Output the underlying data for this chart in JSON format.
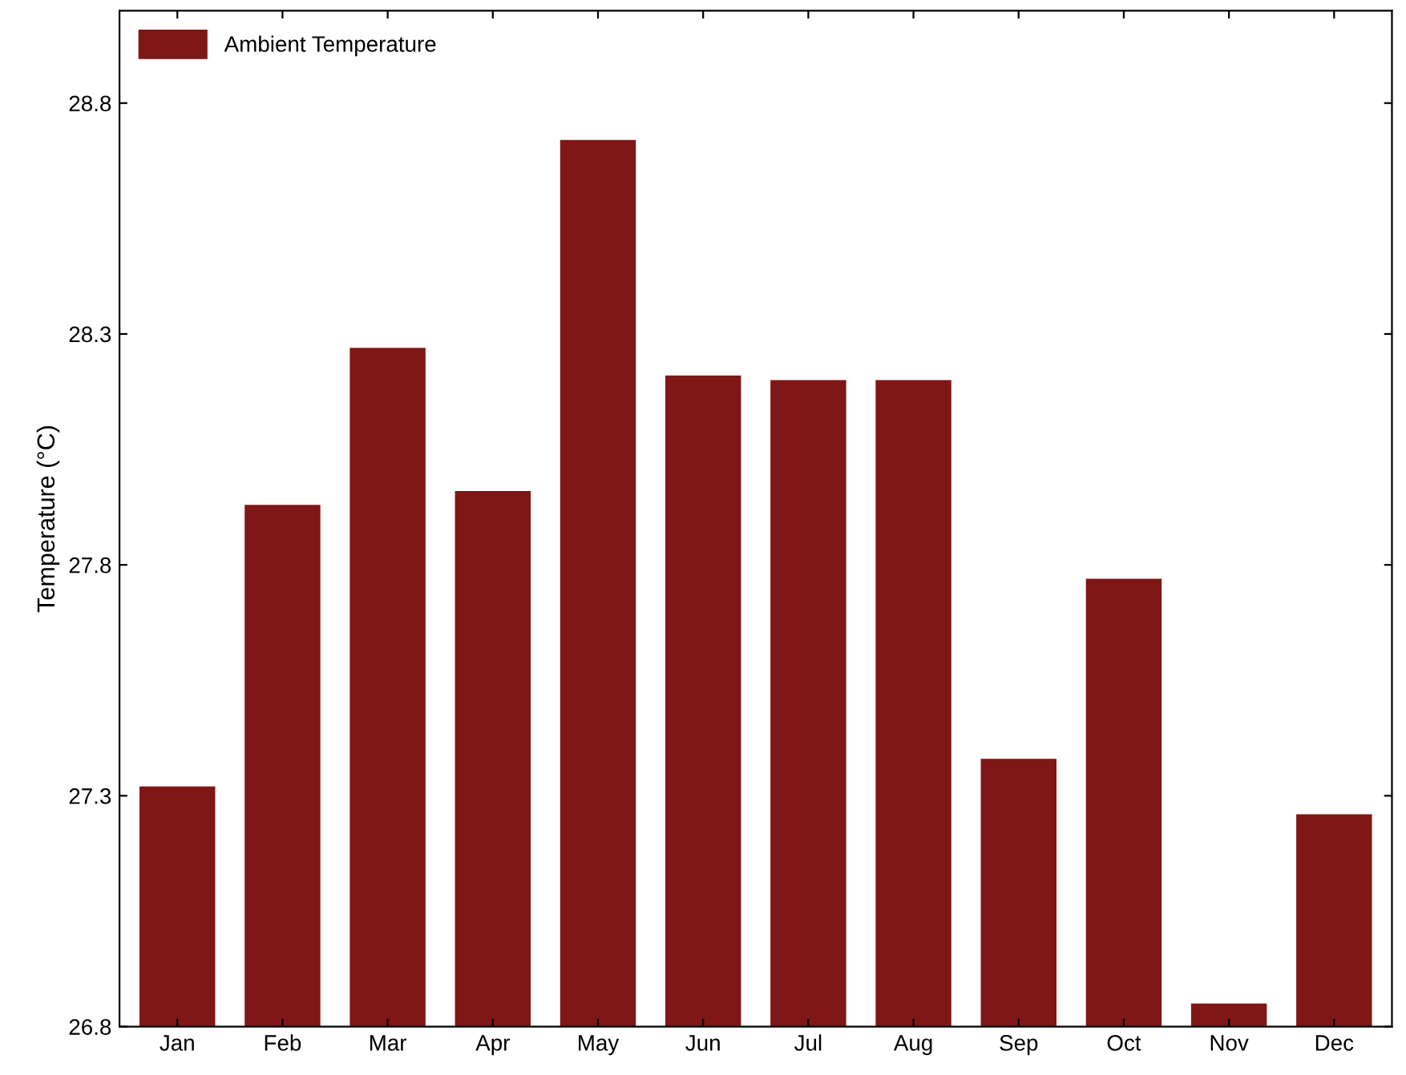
{
  "chart_data": {
    "type": "bar",
    "ylabel": "Temperature (°C)",
    "categories": [
      "Jan",
      "Feb",
      "Mar",
      "Apr",
      "May",
      "Jun",
      "Jul",
      "Aug",
      "Sep",
      "Oct",
      "Nov",
      "Dec"
    ],
    "series": [
      {
        "name": "Ambient Temperature",
        "color": "#7f1716",
        "values": [
          27.32,
          27.93,
          28.27,
          27.96,
          28.72,
          28.21,
          28.2,
          28.2,
          27.38,
          27.77,
          26.85,
          27.26
        ]
      }
    ],
    "ylim": [
      26.8,
      29.0
    ],
    "yticks": [
      26.8,
      27.3,
      27.8,
      28.3,
      28.8
    ],
    "grid": false,
    "legend": "top left"
  }
}
